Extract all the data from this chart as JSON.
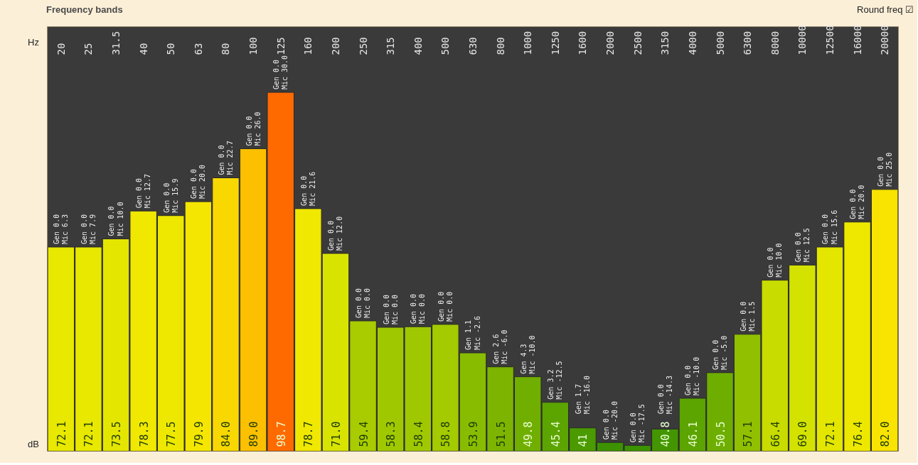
{
  "chart_data": {
    "type": "bar",
    "title": "Frequency bands",
    "xlabel": "Hz",
    "ylabel": "dB",
    "categories": [
      "20",
      "25",
      "31.5",
      "40",
      "50",
      "63",
      "80",
      "100",
      "125",
      "160",
      "200",
      "250",
      "315",
      "400",
      "500",
      "630",
      "800",
      "1000",
      "1250",
      "1600",
      "2000",
      "2500",
      "3150",
      "4000",
      "5000",
      "6300",
      "8000",
      "10000",
      "12500",
      "16000",
      "20000"
    ],
    "values": [
      72.1,
      72.1,
      73.5,
      78.3,
      77.5,
      79.9,
      84.0,
      89.0,
      98.7,
      78.7,
      71.0,
      59.4,
      58.3,
      58.4,
      58.8,
      53.9,
      51.5,
      49.8,
      45.4,
      41.0,
      38.5,
      38.0,
      40.8,
      46.1,
      50.5,
      57.1,
      66.4,
      69.0,
      72.1,
      76.4,
      82.0
    ],
    "value_labels": [
      "72.1",
      "72.1",
      "73.5",
      "78.3",
      "77.5",
      "79.9",
      "84.0",
      "89.0",
      "98.7",
      "78.7",
      "71.0",
      "59.4",
      "58.3",
      "58.4",
      "58.8",
      "53.9",
      "51.5",
      "49.8",
      "45.4",
      "41",
      null,
      null,
      "40.8",
      "46.1",
      "50.5",
      "57.1",
      "66.4",
      "69.0",
      "72.1",
      "76.4",
      "82.0"
    ],
    "colors": [
      "#e8e800",
      "#e8e800",
      "#e4e600",
      "#f0e800",
      "#eee800",
      "#f4e600",
      "#f8d800",
      "#fcc000",
      "#ff6a00",
      "#f0e800",
      "#d8e400",
      "#a8cc00",
      "#a0c800",
      "#a0c800",
      "#a4ca00",
      "#88bc00",
      "#7cb400",
      "#70ae00",
      "#5ca400",
      "#4a9a00",
      "#3c9200",
      "#3c9200",
      "#449600",
      "#5ca400",
      "#6eae00",
      "#90c000",
      "#c8dc00",
      "#d4e200",
      "#e4e600",
      "#eee800",
      "#f8e400"
    ],
    "ylim": [
      37,
      110
    ],
    "tick_labels": "x",
    "grid": false,
    "annotations": [
      "Round freq ☑",
      {
        "text": "Gen 0.0\nMic 6.3",
        "x": "20",
        "y": 72.1
      },
      {
        "text": "Gen 0.0\nMic 7.9",
        "x": "25",
        "y": 72.1
      },
      {
        "text": "Gen 0.0\nMic 10.0",
        "x": "31.5",
        "y": 73.5
      },
      {
        "text": "Gen 0.0\nMic 12.7",
        "x": "40",
        "y": 78.3
      },
      {
        "text": "Gen 0.0\nMic 15.9",
        "x": "50",
        "y": 77.5
      },
      {
        "text": "Gen 0.0\nMic 20.0",
        "x": "63",
        "y": 79.9
      },
      {
        "text": "Gen 0.0\nMic 22.7",
        "x": "80",
        "y": 84.0
      },
      {
        "text": "Gen 0.0\nMic 26.0",
        "x": "100",
        "y": 89.0
      },
      {
        "text": "Gen 0.0\nMic 30.0",
        "x": "125",
        "y": 98.7
      },
      {
        "text": "Gen 0.0\nMic 21.6",
        "x": "160",
        "y": 78.7
      },
      {
        "text": "Gen 0.0\nMic 12.0",
        "x": "200",
        "y": 71.0
      },
      {
        "text": "Gen 0.0\nMic 0.0",
        "x": "250",
        "y": 59.4
      },
      {
        "text": "Gen 0.0\nMic 0.0",
        "x": "315",
        "y": 58.3
      },
      {
        "text": "Gen 0.0\nMic 0.0",
        "x": "400",
        "y": 58.4
      },
      {
        "text": "Gen 0.0\nMic 0.0",
        "x": "500",
        "y": 58.8
      },
      {
        "text": "Gen 1.1\nMic -2.6",
        "x": "630",
        "y": 53.9
      },
      {
        "text": "Gen 2.6\nMic -6.0",
        "x": "800",
        "y": 51.5
      },
      {
        "text": "Gen 4.3\nMic -10.0",
        "x": "1000",
        "y": 49.8
      },
      {
        "text": "Gen 3.2\nMic -12.5",
        "x": "1250",
        "y": 45.4
      },
      {
        "text": "Gen 1.7\nMic -16.0",
        "x": "1600",
        "y": 41.0
      },
      {
        "text": "Gen 0.0\nMic -20.0",
        "x": "2000",
        "y": 38.5
      },
      {
        "text": "Gen 0.0\nMic -17.5",
        "x": "2500",
        "y": 38.0
      },
      {
        "text": "Gen 0.0\nMic -14.3",
        "x": "3150",
        "y": 40.8
      },
      {
        "text": "Gen 0.0\nMic -10.0",
        "x": "4000",
        "y": 46.1
      },
      {
        "text": "Gen 0.0\nMic -5.0",
        "x": "5000",
        "y": 50.5
      },
      {
        "text": "Gen 0.0\nMic 1.5",
        "x": "6300",
        "y": 57.1
      },
      {
        "text": "Gen 0.0\nMic 10.0",
        "x": "8000",
        "y": 66.4
      },
      {
        "text": "Gen 0.0\nMic 12.5",
        "x": "10000",
        "y": 69.0
      },
      {
        "text": "Gen 0.0\nMic 15.6",
        "x": "12500",
        "y": 72.1
      },
      {
        "text": "Gen 0.0\nMic 20.0",
        "x": "16000",
        "y": 76.4
      },
      {
        "text": "Gen 0.0\nMic 25.0",
        "x": "20000",
        "y": 82.0
      }
    ]
  }
}
